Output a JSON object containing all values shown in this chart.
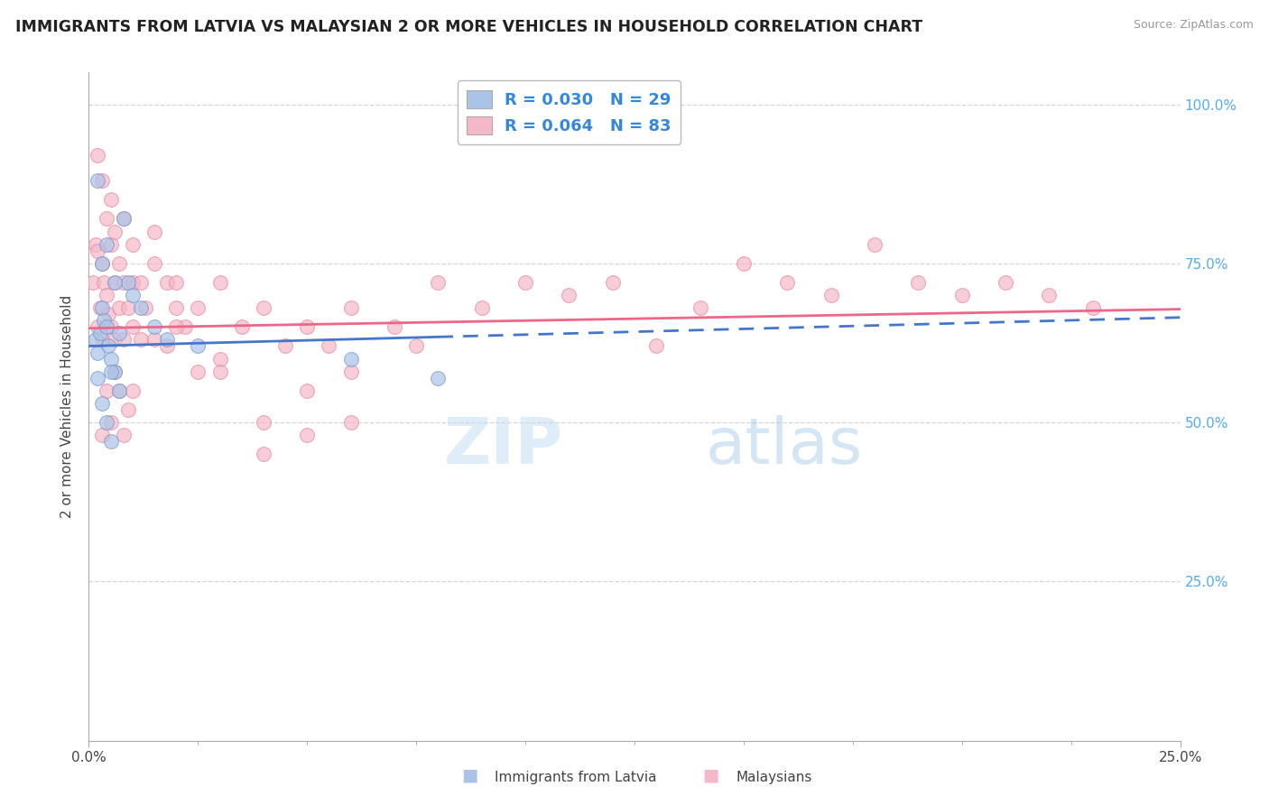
{
  "title": "IMMIGRANTS FROM LATVIA VS MALAYSIAN 2 OR MORE VEHICLES IN HOUSEHOLD CORRELATION CHART",
  "source": "Source: ZipAtlas.com",
  "ylabel": "2 or more Vehicles in Household",
  "xlim": [
    0.0,
    25.0
  ],
  "ylim": [
    0.0,
    105.0
  ],
  "yticks": [
    25.0,
    50.0,
    75.0,
    100.0
  ],
  "grid_color": "#cccccc",
  "bg_color": "#ffffff",
  "blue_color": "#aac4e8",
  "blue_edge": "#7799cc",
  "pink_color": "#f5b8c8",
  "pink_edge": "#e888a0",
  "blue_line_color": "#4477cc",
  "pink_line_color": "#ee6688",
  "blue_R": 0.03,
  "blue_N": 29,
  "pink_R": 0.064,
  "pink_N": 83,
  "legend_label_blue": "Immigrants from Latvia",
  "legend_label_pink": "Malaysians",
  "watermark_zip": "ZIP",
  "watermark_atlas": "atlas",
  "blue_scatter_x": [
    0.15,
    0.2,
    0.25,
    0.3,
    0.35,
    0.4,
    0.45,
    0.5,
    0.6,
    0.7,
    0.8,
    0.9,
    1.0,
    1.2,
    1.5,
    0.3,
    0.4,
    0.5,
    0.6,
    0.7,
    0.2,
    0.3,
    0.4,
    0.5,
    2.5,
    0.2,
    6.0,
    8.0,
    1.8
  ],
  "blue_scatter_y": [
    63.0,
    61.0,
    64.0,
    68.0,
    66.0,
    65.0,
    62.0,
    60.0,
    58.0,
    64.0,
    82.0,
    72.0,
    70.0,
    68.0,
    65.0,
    75.0,
    78.0,
    58.0,
    72.0,
    55.0,
    57.0,
    53.0,
    50.0,
    47.0,
    62.0,
    88.0,
    60.0,
    57.0,
    63.0
  ],
  "pink_scatter_x": [
    0.1,
    0.15,
    0.2,
    0.2,
    0.25,
    0.3,
    0.3,
    0.35,
    0.4,
    0.45,
    0.5,
    0.5,
    0.6,
    0.6,
    0.7,
    0.7,
    0.8,
    0.8,
    0.9,
    1.0,
    1.0,
    1.2,
    1.2,
    1.3,
    1.5,
    1.5,
    1.8,
    1.8,
    2.0,
    2.0,
    2.2,
    2.5,
    2.5,
    3.0,
    3.0,
    3.5,
    4.0,
    4.0,
    4.5,
    5.0,
    5.0,
    5.5,
    6.0,
    6.0,
    7.0,
    7.5,
    8.0,
    9.0,
    10.0,
    11.0,
    12.0,
    13.0,
    14.0,
    15.0,
    16.0,
    17.0,
    18.0,
    19.0,
    20.0,
    21.0,
    22.0,
    23.0,
    0.3,
    0.4,
    0.5,
    0.6,
    0.8,
    1.0,
    1.5,
    2.0,
    3.0,
    0.2,
    0.3,
    0.4,
    0.5,
    0.6,
    0.7,
    0.8,
    0.9,
    1.0,
    4.0,
    5.0,
    6.0
  ],
  "pink_scatter_y": [
    72.0,
    78.0,
    77.0,
    65.0,
    68.0,
    75.0,
    63.0,
    72.0,
    70.0,
    67.0,
    78.0,
    65.0,
    72.0,
    63.0,
    75.0,
    68.0,
    72.0,
    63.0,
    68.0,
    72.0,
    65.0,
    72.0,
    63.0,
    68.0,
    75.0,
    63.0,
    72.0,
    62.0,
    68.0,
    72.0,
    65.0,
    68.0,
    58.0,
    72.0,
    60.0,
    65.0,
    68.0,
    50.0,
    62.0,
    65.0,
    55.0,
    62.0,
    68.0,
    58.0,
    65.0,
    62.0,
    72.0,
    68.0,
    72.0,
    70.0,
    72.0,
    62.0,
    68.0,
    75.0,
    72.0,
    70.0,
    78.0,
    72.0,
    70.0,
    72.0,
    70.0,
    68.0,
    88.0,
    82.0,
    85.0,
    80.0,
    82.0,
    78.0,
    80.0,
    65.0,
    58.0,
    92.0,
    48.0,
    55.0,
    50.0,
    58.0,
    55.0,
    48.0,
    52.0,
    55.0,
    45.0,
    48.0,
    50.0
  ]
}
